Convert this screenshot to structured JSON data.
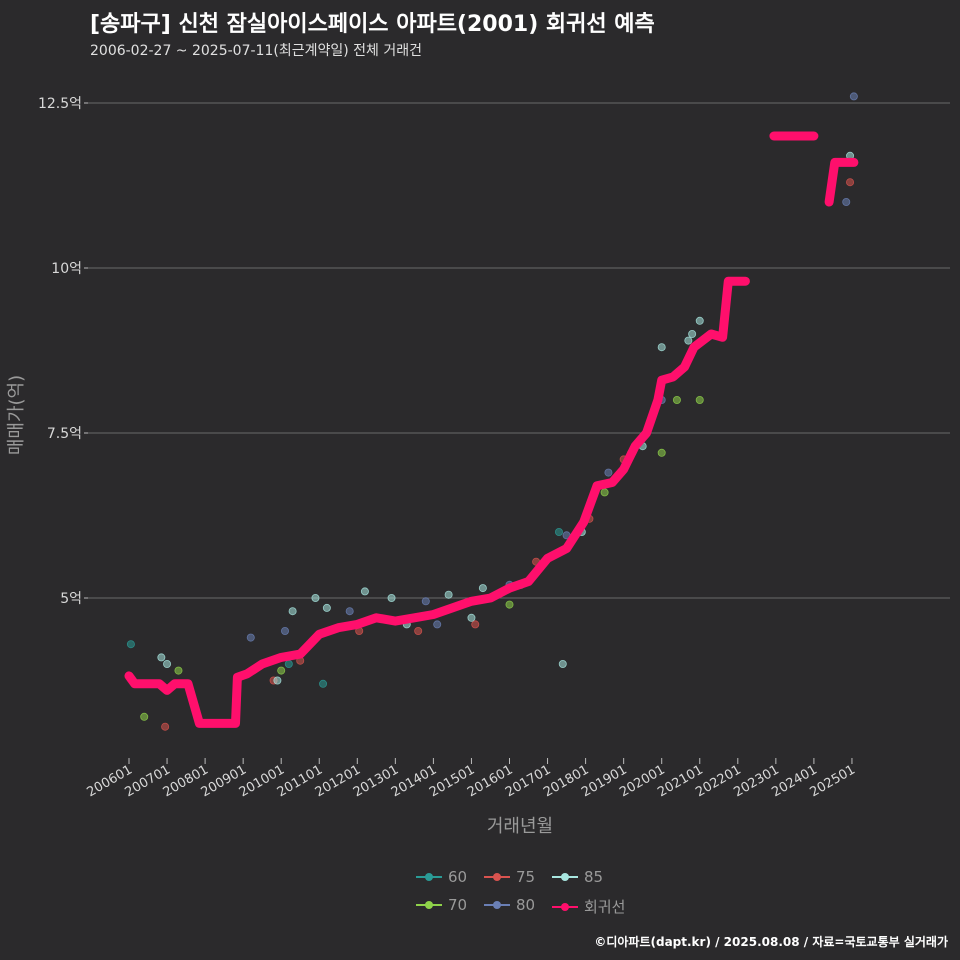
{
  "header": {
    "title": "[송파구] 신천 잠실아이스페이스 아파트(2001) 회귀선 예측",
    "subtitle": "2006-02-27 ~ 2025-07-11(최근계약일) 전체 거래건"
  },
  "caption": "©디아파트(dapt.kr) / 2025.08.08 / 자료=국토교통부 실거래가",
  "colors": {
    "background": "#2b2a2c",
    "grid": "#6a6a6a",
    "regression": "#ff0f6c"
  },
  "chart_data": {
    "type": "scatter",
    "xlabel": "거래년월",
    "ylabel": "매매가(억)",
    "x_ticks": [
      "200601",
      "200701",
      "200801",
      "200901",
      "201001",
      "201101",
      "201201",
      "201301",
      "201401",
      "201501",
      "201601",
      "201701",
      "201801",
      "201901",
      "202001",
      "202101",
      "202201",
      "202301",
      "202401",
      "202501"
    ],
    "y_ticks": [
      "5억",
      "7.5억",
      "10억",
      "12.5억"
    ],
    "y_tick_values": [
      5,
      7.5,
      10,
      12.5
    ],
    "xlim": [
      2006.0,
      2026.0
    ],
    "ylim": [
      2.5,
      13.0
    ],
    "legend": [
      {
        "label": "60",
        "color": "#2a9b96"
      },
      {
        "label": "75",
        "color": "#d9534f"
      },
      {
        "label": "85",
        "color": "#a8e6e0"
      },
      {
        "label": "70",
        "color": "#8fd24a"
      },
      {
        "label": "80",
        "color": "#6a7fb5"
      },
      {
        "label": "회귀선",
        "color": "#ff0f6c"
      }
    ],
    "series": [
      {
        "name": "60",
        "points": [
          [
            2006.05,
            4.3
          ],
          [
            2010.2,
            4.0
          ],
          [
            2011.1,
            3.7
          ],
          [
            2017.3,
            6.0
          ]
        ]
      },
      {
        "name": "70",
        "points": [
          [
            2006.4,
            3.2
          ],
          [
            2007.3,
            3.9
          ],
          [
            2010.0,
            3.9
          ],
          [
            2016.0,
            4.9
          ],
          [
            2018.5,
            6.6
          ],
          [
            2019.2,
            7.2
          ],
          [
            2020.0,
            7.2
          ],
          [
            2020.4,
            8.0
          ],
          [
            2021.0,
            8.0
          ]
        ]
      },
      {
        "name": "75",
        "points": [
          [
            2006.95,
            3.05
          ],
          [
            2009.8,
            3.75
          ],
          [
            2010.5,
            4.05
          ],
          [
            2012.05,
            4.5
          ],
          [
            2013.6,
            4.5
          ],
          [
            2015.1,
            4.6
          ],
          [
            2016.7,
            5.55
          ],
          [
            2018.1,
            6.2
          ],
          [
            2019.0,
            7.1
          ],
          [
            2024.95,
            11.3
          ]
        ]
      },
      {
        "name": "80",
        "points": [
          [
            2009.2,
            4.4
          ],
          [
            2010.1,
            4.5
          ],
          [
            2011.8,
            4.8
          ],
          [
            2013.8,
            4.95
          ],
          [
            2014.1,
            4.6
          ],
          [
            2016.0,
            5.2
          ],
          [
            2017.5,
            5.95
          ],
          [
            2018.6,
            6.9
          ],
          [
            2020.0,
            8.0
          ],
          [
            2024.85,
            11.0
          ],
          [
            2025.05,
            12.6
          ]
        ]
      },
      {
        "name": "85",
        "points": [
          [
            2006.85,
            4.1
          ],
          [
            2007.0,
            4.0
          ],
          [
            2008.9,
            3.8
          ],
          [
            2009.9,
            3.75
          ],
          [
            2010.3,
            4.8
          ],
          [
            2010.9,
            5.0
          ],
          [
            2011.2,
            4.85
          ],
          [
            2012.2,
            5.1
          ],
          [
            2012.9,
            5.0
          ],
          [
            2013.3,
            4.6
          ],
          [
            2014.4,
            5.05
          ],
          [
            2015.0,
            4.7
          ],
          [
            2015.3,
            5.15
          ],
          [
            2016.3,
            5.2
          ],
          [
            2017.4,
            4.0
          ],
          [
            2017.9,
            6.0
          ],
          [
            2019.5,
            7.3
          ],
          [
            2020.0,
            8.8
          ],
          [
            2020.7,
            8.9
          ],
          [
            2020.8,
            9.0
          ],
          [
            2021.0,
            9.2
          ],
          [
            2022.1,
            9.8
          ],
          [
            2024.95,
            11.7
          ]
        ]
      }
    ],
    "regression_segments": [
      [
        [
          2006.0,
          3.82
        ],
        [
          2006.15,
          3.7
        ],
        [
          2006.8,
          3.7
        ],
        [
          2007.0,
          3.6
        ],
        [
          2007.2,
          3.7
        ],
        [
          2007.55,
          3.7
        ],
        [
          2007.85,
          3.1
        ],
        [
          2008.45,
          3.1
        ],
        [
          2008.8,
          3.1
        ],
        [
          2008.85,
          3.8
        ],
        [
          2009.1,
          3.85
        ],
        [
          2009.5,
          4.0
        ],
        [
          2010.0,
          4.1
        ],
        [
          2010.5,
          4.15
        ],
        [
          2011.0,
          4.45
        ],
        [
          2011.5,
          4.55
        ],
        [
          2012.0,
          4.6
        ],
        [
          2012.5,
          4.7
        ],
        [
          2013.0,
          4.65
        ],
        [
          2013.5,
          4.7
        ],
        [
          2014.0,
          4.75
        ],
        [
          2014.5,
          4.85
        ],
        [
          2015.0,
          4.95
        ],
        [
          2015.5,
          5.0
        ],
        [
          2016.0,
          5.15
        ],
        [
          2016.5,
          5.25
        ],
        [
          2017.0,
          5.6
        ],
        [
          2017.5,
          5.75
        ],
        [
          2017.95,
          6.15
        ],
        [
          2018.3,
          6.7
        ],
        [
          2018.7,
          6.75
        ],
        [
          2019.0,
          6.95
        ],
        [
          2019.3,
          7.3
        ],
        [
          2019.6,
          7.5
        ],
        [
          2019.9,
          8.0
        ],
        [
          2020.0,
          8.3
        ],
        [
          2020.3,
          8.35
        ],
        [
          2020.6,
          8.5
        ],
        [
          2020.85,
          8.8
        ],
        [
          2021.3,
          9.0
        ],
        [
          2021.6,
          8.95
        ],
        [
          2021.75,
          9.8
        ],
        [
          2022.2,
          9.8
        ]
      ],
      [
        [
          2022.95,
          12.0
        ],
        [
          2024.0,
          12.0
        ]
      ],
      [
        [
          2024.4,
          11.0
        ],
        [
          2024.55,
          11.6
        ],
        [
          2025.05,
          11.6
        ]
      ]
    ]
  }
}
